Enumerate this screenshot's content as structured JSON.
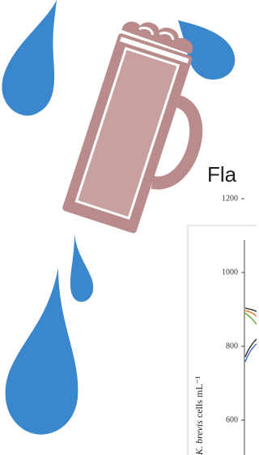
{
  "slide": {
    "title_fragment": "Fla"
  },
  "inset_chart": {
    "y_axis_label": {
      "italic": "K. brevis",
      "rest": " cells mL⁻¹"
    },
    "yticks": [
      "1200",
      "1000",
      "800",
      "600"
    ]
  }
}
